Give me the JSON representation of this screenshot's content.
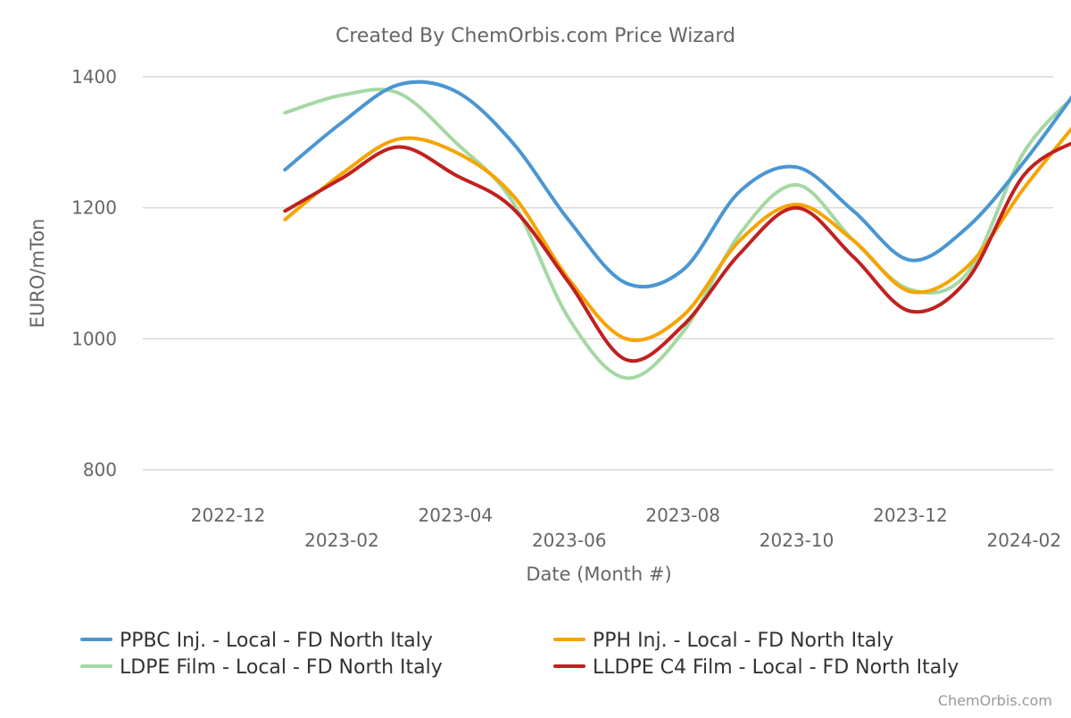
{
  "chart_data": {
    "type": "line",
    "title": "Created By ChemOrbis.com Price Wizard",
    "xlabel": "Date (Month #)",
    "ylabel": "EURO/mTon",
    "credit": "ChemOrbis.com",
    "ylim": [
      800,
      1400
    ],
    "y_ticks": [
      800,
      1000,
      1200,
      1400
    ],
    "x_ticks": [
      "2022-12",
      "2023-02",
      "2023-04",
      "2023-06",
      "2023-08",
      "2023-10",
      "2023-12",
      "2024-02"
    ],
    "x": [
      "2023-01",
      "2023-02",
      "2023-03",
      "2023-04",
      "2023-05",
      "2023-06",
      "2023-07",
      "2023-08",
      "2023-09",
      "2023-10",
      "2023-11",
      "2023-12",
      "2024-01",
      "2024-02",
      "2024-03"
    ],
    "grid": true,
    "legend_position": "bottom",
    "series": [
      {
        "name": "PPBC Inj. - Local - FD North Italy",
        "color": "#4a96d2",
        "values": [
          1258,
          1330,
          1388,
          1378,
          1300,
          1180,
          1085,
          1105,
          1225,
          1262,
          1195,
          1120,
          1170,
          1270,
          1388
        ]
      },
      {
        "name": "PPH Inj. - Local - FD North Italy",
        "color": "#f5a400",
        "values": [
          1182,
          1252,
          1305,
          1285,
          1220,
          1090,
          1000,
          1035,
          1150,
          1205,
          1150,
          1072,
          1110,
          1230,
          1338
        ]
      },
      {
        "name": "LDPE Film - Local - FD North Italy",
        "color": "#a6d8a2",
        "values": [
          1345,
          1372,
          1375,
          1300,
          1210,
          1030,
          940,
          1010,
          1160,
          1235,
          1150,
          1075,
          1100,
          1285,
          1380
        ]
      },
      {
        "name": "LLDPE C4 Film - Local - FD North Italy",
        "color": "#c0211f",
        "values": [
          1195,
          1245,
          1293,
          1250,
          1200,
          1085,
          968,
          1020,
          1130,
          1200,
          1125,
          1042,
          1090,
          1250,
          1305
        ]
      }
    ]
  }
}
